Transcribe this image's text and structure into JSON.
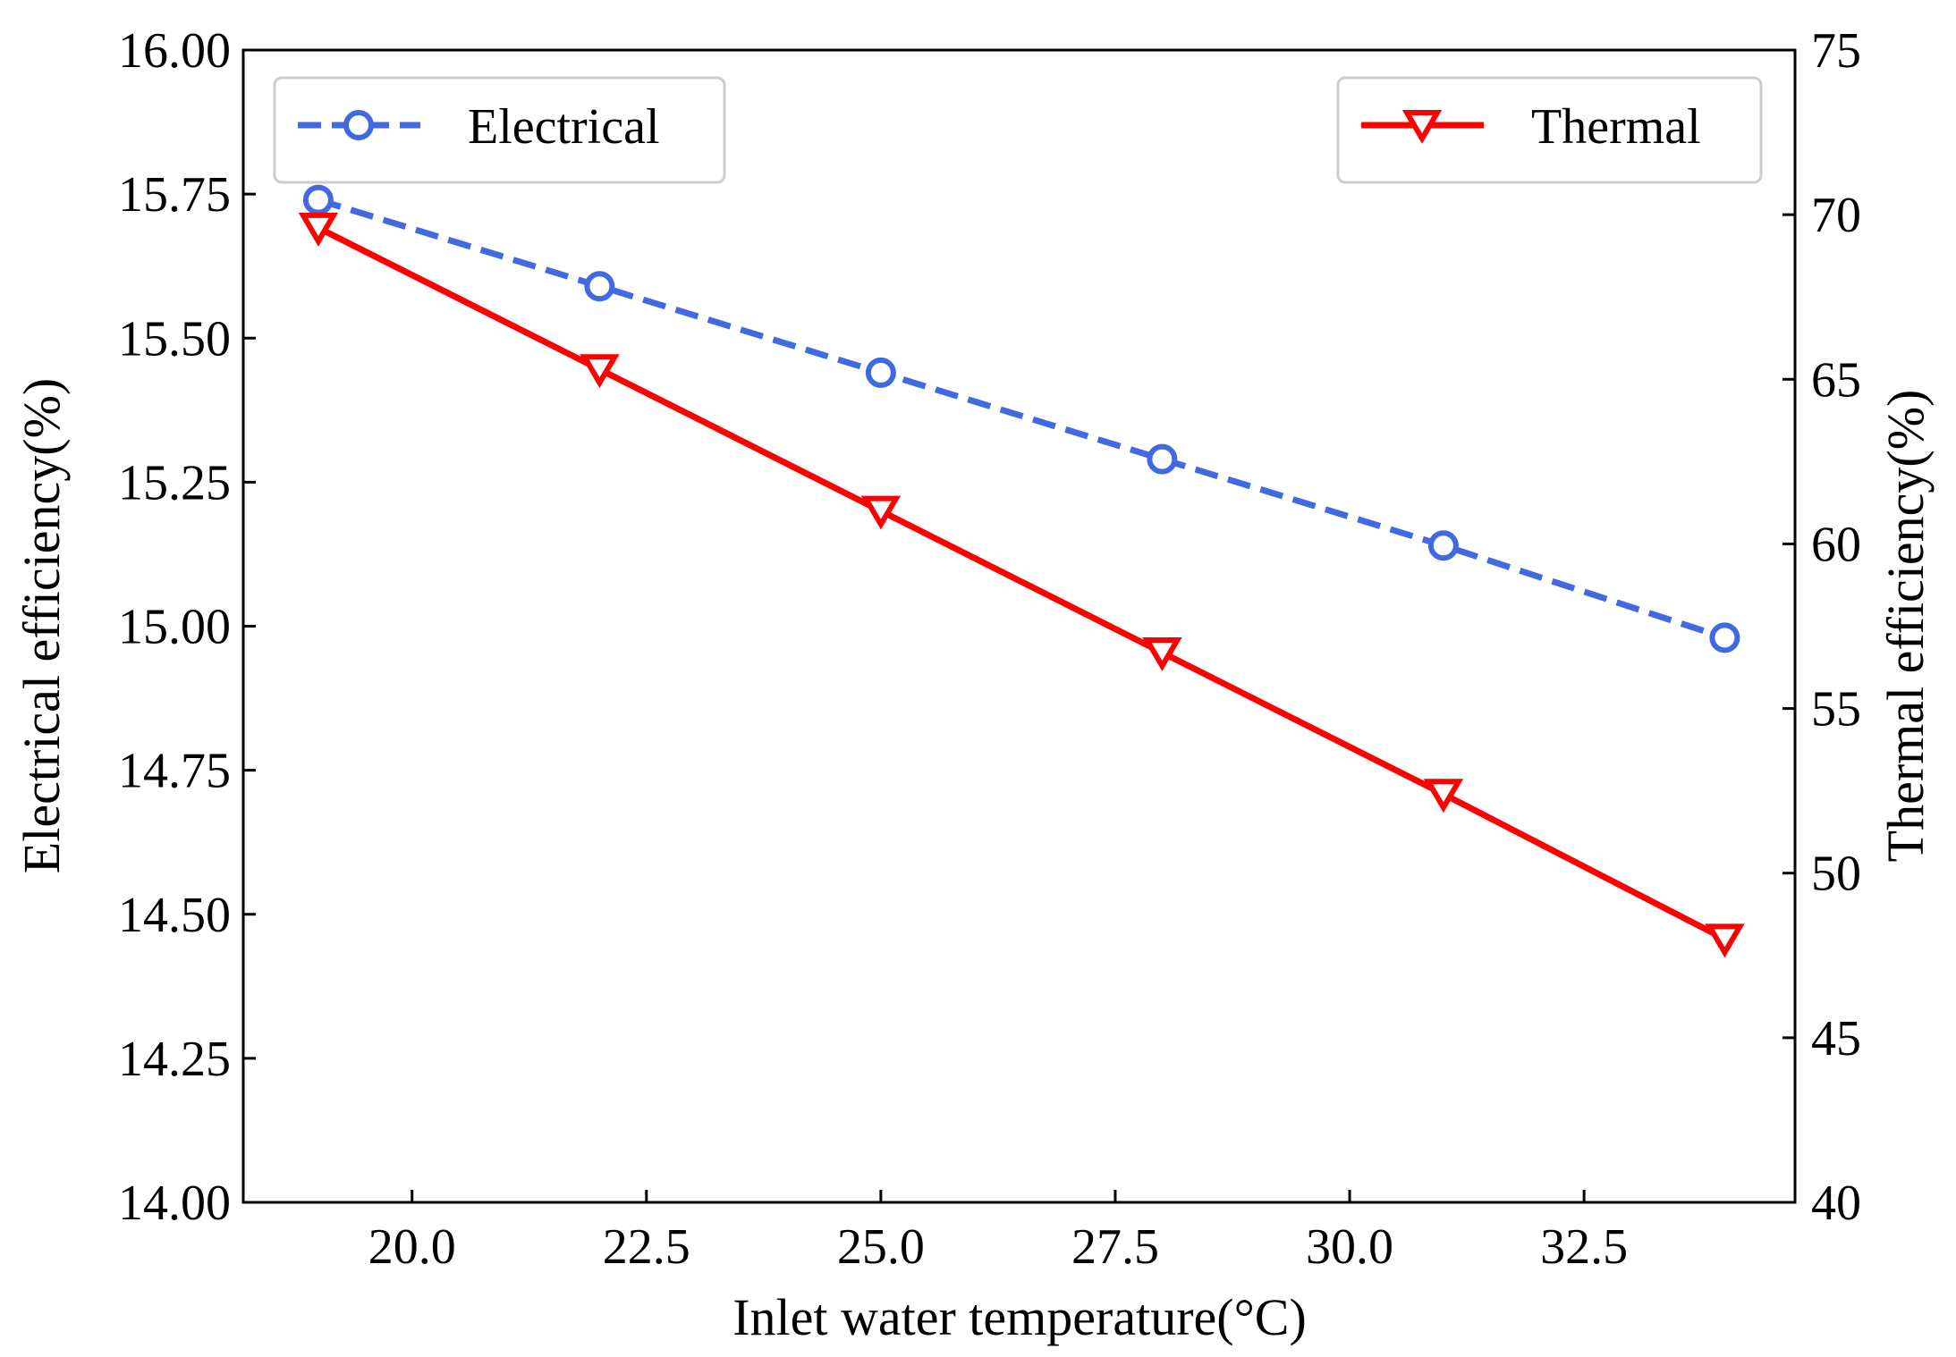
{
  "chart_data": {
    "type": "line",
    "title": "",
    "xlabel": "Inlet water temperature(°C)",
    "ylabel_left": "Electrical efficiency(%)",
    "ylabel_right": "Thermal efficiency(%)",
    "xlim": [
      18.2,
      34.75
    ],
    "ylim_left": [
      14.0,
      16.0
    ],
    "ylim_right": [
      40,
      75
    ],
    "x_ticks": [
      "20.0",
      "22.5",
      "25.0",
      "27.5",
      "30.0",
      "32.5"
    ],
    "x_tick_values": [
      20.0,
      22.5,
      25.0,
      27.5,
      30.0,
      32.5
    ],
    "y_left_ticks": [
      "14.00",
      "14.25",
      "14.50",
      "14.75",
      "15.00",
      "15.25",
      "15.50",
      "15.75",
      "16.00"
    ],
    "y_left_tick_values": [
      14.0,
      14.25,
      14.5,
      14.75,
      15.0,
      15.25,
      15.5,
      15.75,
      16.0
    ],
    "y_right_ticks": [
      "40",
      "45",
      "50",
      "55",
      "60",
      "65",
      "70",
      "75"
    ],
    "y_right_tick_values": [
      40,
      45,
      50,
      55,
      60,
      65,
      70,
      75
    ],
    "x": [
      19,
      22,
      25,
      28,
      31,
      34
    ],
    "series": [
      {
        "name": "Electrical",
        "axis": "left",
        "color": "#4169e1",
        "line_style": "dashed",
        "marker": "circle",
        "values": [
          15.74,
          15.59,
          15.44,
          15.29,
          15.14,
          14.98
        ]
      },
      {
        "name": "Thermal",
        "axis": "right",
        "color": "#ff0000",
        "line_style": "solid",
        "marker": "triangle-down",
        "values": [
          69.6,
          65.3,
          61.0,
          56.7,
          52.4,
          48.0
        ]
      }
    ],
    "legend": [
      {
        "label": "Electrical",
        "position": "top-left"
      },
      {
        "label": "Thermal",
        "position": "top-right"
      }
    ]
  }
}
